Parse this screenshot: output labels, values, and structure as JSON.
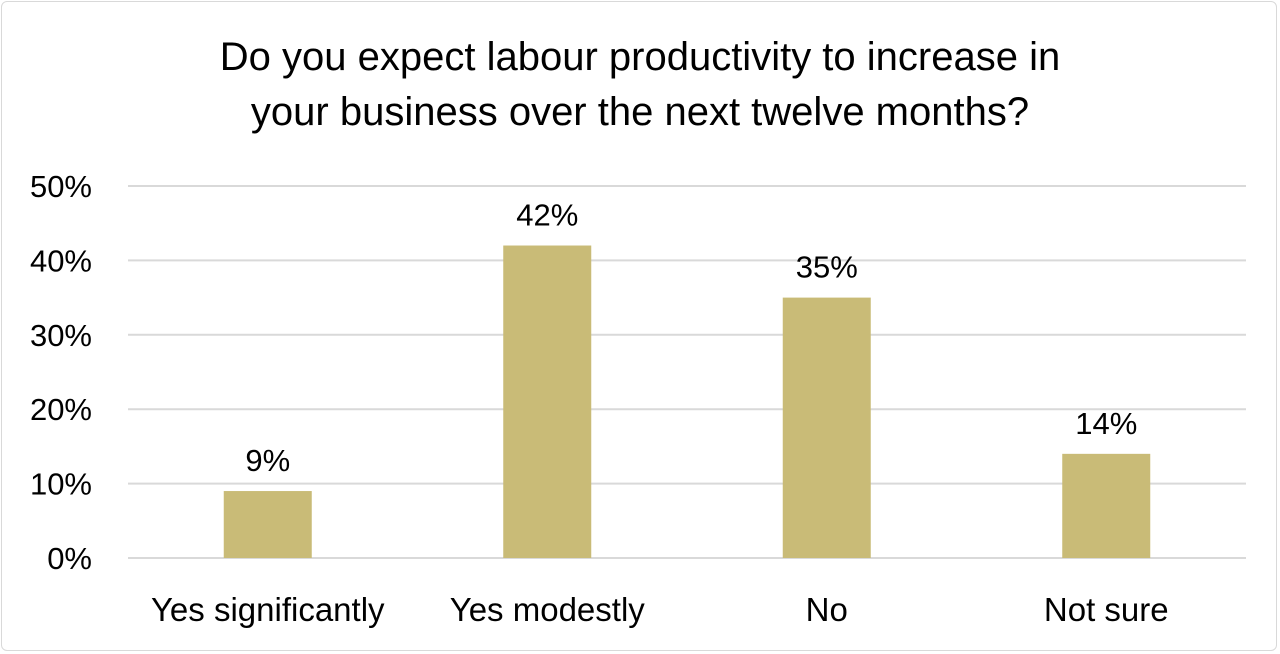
{
  "chart_data": {
    "type": "bar",
    "title": "Do you expect labour productivity to increase in\nyour business over the next twelve months?",
    "categories": [
      "Yes significantly",
      "Yes modestly",
      "No",
      "Not sure"
    ],
    "values": [
      9,
      42,
      35,
      14
    ],
    "value_labels": [
      "9%",
      "42%",
      "35%",
      "14%"
    ],
    "ylim": [
      0,
      50
    ],
    "yticks": [
      0,
      10,
      20,
      30,
      40,
      50
    ],
    "ytick_labels": [
      "0%",
      "10%",
      "20%",
      "30%",
      "40%",
      "50%"
    ],
    "xlabel": "",
    "ylabel": "",
    "grid": true,
    "legend": "none",
    "bar_color": "#c9bb77",
    "grid_color": "#d9d9d9"
  }
}
